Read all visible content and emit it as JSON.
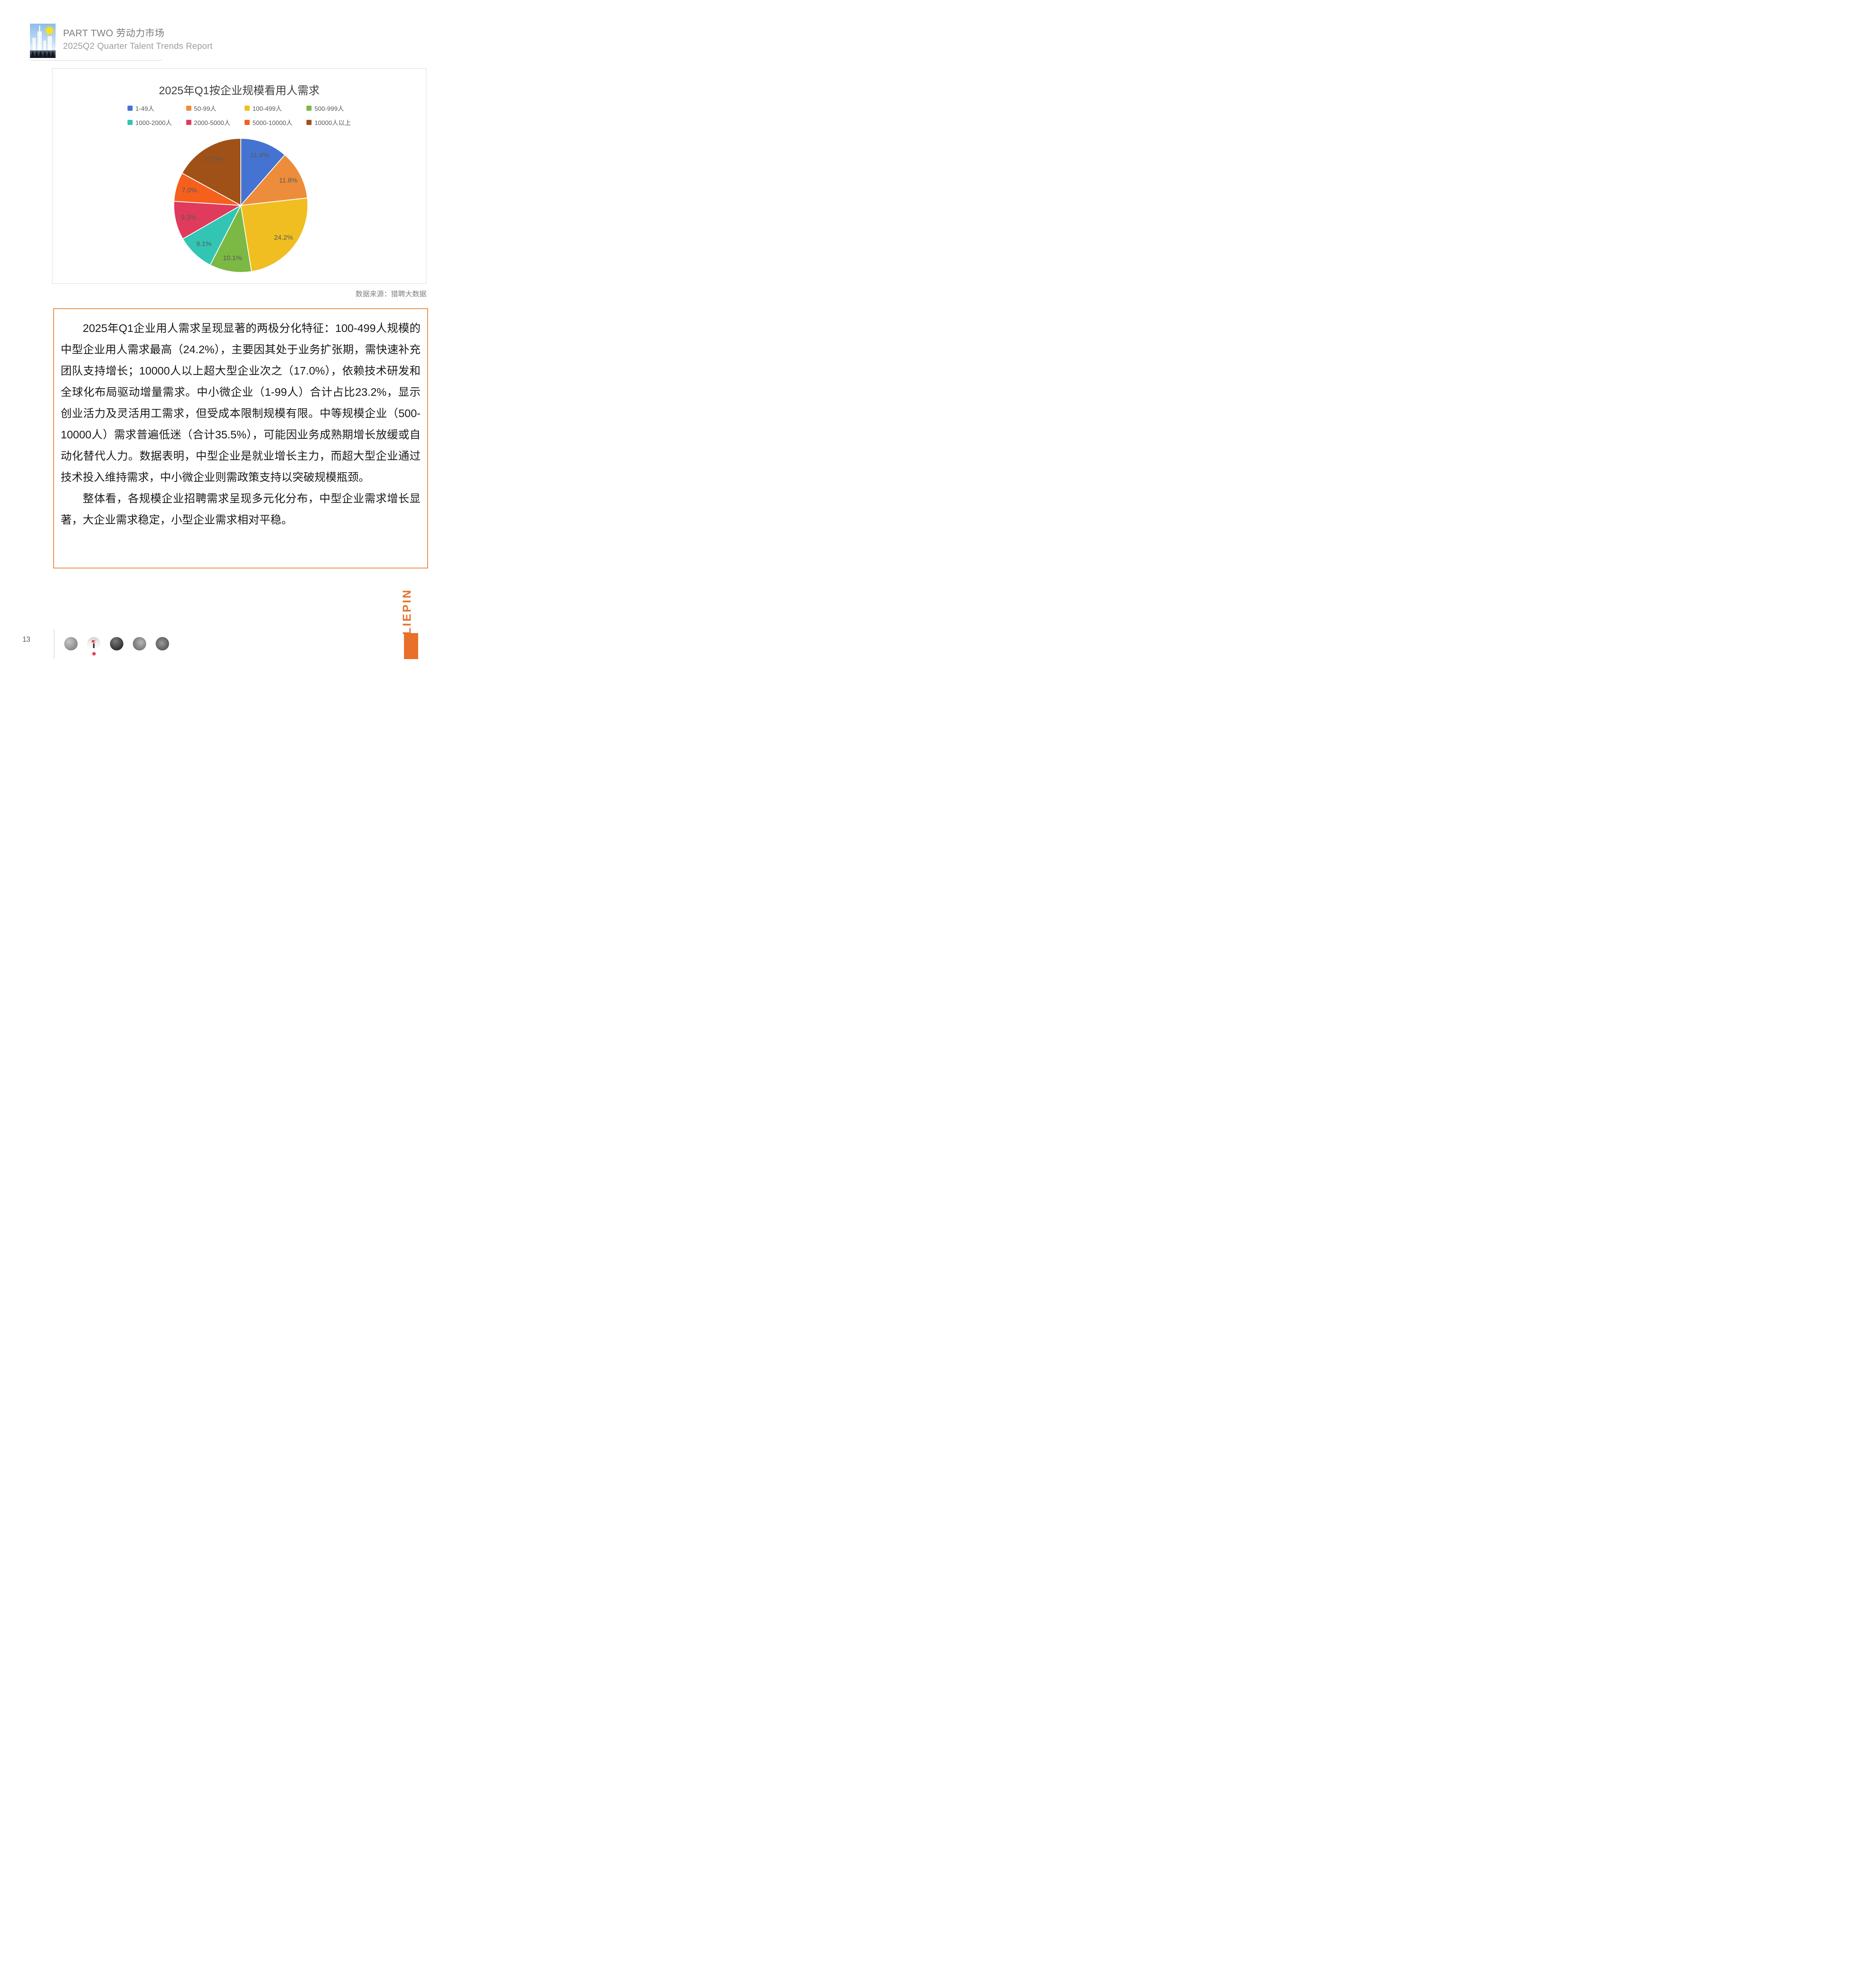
{
  "header": {
    "part_label": "PART TWO 劳动力市场",
    "subtitle": "2025Q2 Quarter Talent Trends Report",
    "logo": "city-skyline-sun-people-logo"
  },
  "chart_card": {
    "source_note": "数据来源：猎聘大数据",
    "border_color": "#D9D9D9"
  },
  "chart_data": {
    "type": "pie",
    "title": "2025年Q1按企业规模看用人需求",
    "categories": [
      "1-49人",
      "50-99人",
      "100-499人",
      "500-999人",
      "1000-2000人",
      "2000-5000人",
      "5000-10000人",
      "10000人以上"
    ],
    "values": [
      11.4,
      11.8,
      24.2,
      10.1,
      9.1,
      9.3,
      7.0,
      17.0
    ],
    "colors": [
      "#4573D1",
      "#ED8D3B",
      "#F0BE20",
      "#7BB844",
      "#33C5B4",
      "#E03A5D",
      "#F5601C",
      "#A05118"
    ],
    "label_format": "percent",
    "label_color": "#595959",
    "legend_position": "top",
    "start_angle_deg": 0,
    "direction": "clockwise"
  },
  "analysis_box": {
    "border_color": "#E8833C",
    "paragraphs": [
      "2025年Q1企业用人需求呈现显著的两极分化特征：100-499人规模的中型企业用人需求最高（24.2%），主要因其处于业务扩张期，需快速补充团队支持增长；10000人以上超大型企业次之（17.0%），依赖技术研发和全球化布局驱动增量需求。中小微企业（1-99人）合计占比23.2%，显示创业活力及灵活用工需求，但受成本限制规模有限。中等规模企业（500-10000人）需求普遍低迷（合计35.5%），可能因业务成熟期增长放缓或自动化替代人力。数据表明，中型企业是就业增长主力，而超大型企业通过技术投入维持需求，中小微企业则需政策支持以突破规模瓶颈。",
      "整体看，各规模企业招聘需求呈现多元化分布，中型企业需求增长显著，大企业需求稳定，小型企业需求相对平稳。"
    ]
  },
  "footer": {
    "page_number": "13",
    "brand_vertical_text": "LIEPIN",
    "brand_color": "#E8702A",
    "avatar_count": 5
  }
}
